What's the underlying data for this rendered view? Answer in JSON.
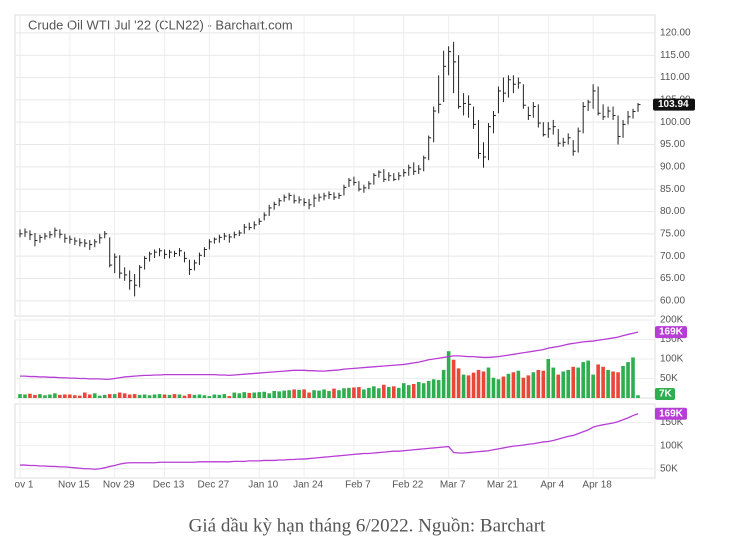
{
  "chart_data": [
    {
      "type": "ohlc",
      "title": "Crude Oil WTI Jul '22 (CLN22) - Barchart.com",
      "color": "#222222",
      "categories": [
        "ov 1",
        null,
        null,
        null,
        null,
        null,
        null,
        null,
        null,
        null,
        "Nov 15",
        null,
        null,
        null,
        null,
        null,
        null,
        null,
        null,
        "Nov 29",
        null,
        null,
        null,
        null,
        null,
        null,
        null,
        null,
        null,
        "Dec 13",
        null,
        null,
        null,
        null,
        null,
        null,
        null,
        null,
        "Dec 27",
        null,
        null,
        null,
        null,
        null,
        null,
        null,
        null,
        null,
        "Jan 10",
        null,
        null,
        null,
        null,
        null,
        null,
        null,
        null,
        "Jan 24",
        null,
        null,
        null,
        null,
        null,
        null,
        null,
        null,
        null,
        "Feb 7",
        null,
        null,
        null,
        null,
        null,
        null,
        null,
        null,
        null,
        "Feb 22",
        null,
        null,
        null,
        null,
        null,
        null,
        null,
        null,
        "Mar 7",
        null,
        null,
        null,
        null,
        null,
        null,
        null,
        null,
        null,
        "Mar 21",
        null,
        null,
        null,
        null,
        null,
        null,
        null,
        null,
        null,
        "Apr 4",
        null,
        null,
        null,
        null,
        null,
        null,
        null,
        null,
        "Apr 18",
        null,
        null,
        null,
        null,
        null,
        null,
        null,
        null,
        null
      ],
      "high": [
        76.0,
        76.2,
        75.8,
        75.2,
        74.8,
        75.2,
        75.6,
        76.4,
        76.0,
        75.0,
        74.6,
        74.2,
        74.0,
        73.8,
        73.6,
        73.8,
        75.0,
        75.6,
        74.2,
        70.6,
        70.2,
        67.5,
        66.8,
        66.0,
        68.0,
        70.0,
        71.0,
        71.5,
        71.8,
        71.5,
        71.4,
        71.2,
        71.8,
        71.0,
        69.2,
        69.2,
        70.8,
        72.0,
        73.8,
        74.2,
        74.8,
        75.2,
        75.0,
        75.5,
        75.8,
        77.2,
        77.5,
        77.8,
        78.5,
        79.8,
        81.5,
        82.2,
        83.0,
        83.8,
        84.2,
        83.8,
        83.4,
        83.0,
        82.8,
        83.8,
        84.0,
        84.2,
        84.5,
        84.3,
        84.2,
        86.0,
        87.5,
        87.8,
        86.8,
        86.0,
        86.8,
        88.6,
        89.2,
        89.5,
        88.8,
        88.6,
        88.8,
        89.5,
        90.5,
        91.0,
        90.4,
        92.5,
        97.0,
        103.5,
        110.5,
        116.0,
        117.0,
        118.0,
        115.0,
        106.5,
        106.0,
        103.5,
        100.5,
        95.5,
        99.8,
        102.5,
        108.0,
        110.0,
        110.5,
        110.5,
        110.0,
        108.5,
        103.5,
        104.5,
        104.0,
        100.0,
        100.0,
        100.5,
        98.5,
        96.5,
        97.5,
        96.0,
        98.8,
        104.5,
        105.0,
        108.5,
        108.0,
        104.0,
        103.5,
        103.5,
        101.5,
        100.5,
        102.5,
        103.0,
        104.3
      ],
      "low": [
        74.2,
        74.3,
        73.6,
        72.2,
        73.0,
        73.7,
        74.0,
        74.2,
        74.0,
        73.0,
        72.8,
        72.5,
        72.2,
        72.0,
        71.4,
        72.0,
        72.8,
        74.0,
        67.5,
        66.2,
        65.0,
        64.5,
        62.5,
        61.0,
        63.0,
        67.0,
        68.8,
        69.6,
        70.0,
        69.4,
        69.5,
        69.8,
        70.0,
        68.6,
        65.8,
        66.8,
        68.0,
        69.8,
        71.5,
        72.8,
        73.0,
        73.6,
        73.0,
        74.0,
        74.5,
        75.0,
        75.8,
        76.0,
        77.0,
        78.0,
        79.0,
        80.4,
        81.2,
        82.2,
        82.5,
        81.8,
        81.8,
        81.2,
        80.5,
        81.0,
        82.2,
        82.5,
        82.8,
        82.6,
        82.8,
        83.6,
        85.5,
        85.8,
        84.5,
        84.2,
        85.0,
        86.0,
        87.6,
        86.6,
        86.8,
        86.8,
        87.0,
        87.8,
        88.0,
        88.2,
        88.4,
        89.0,
        91.5,
        95.5,
        102.0,
        104.5,
        110.5,
        106.5,
        103.0,
        101.5,
        101.0,
        98.5,
        91.8,
        89.8,
        91.5,
        97.5,
        102.0,
        104.5,
        105.5,
        106.5,
        107.5,
        103.0,
        100.5,
        101.0,
        98.8,
        96.8,
        96.5,
        97.2,
        94.5,
        94.5,
        95.0,
        92.5,
        93.2,
        97.5,
        102.5,
        103.0,
        101.5,
        100.5,
        101.0,
        100.5,
        95.0,
        96.5,
        99.5,
        100.8,
        102.3
      ],
      "close": [
        75.0,
        75.4,
        74.8,
        73.5,
        74.2,
        74.5,
        74.8,
        75.8,
        74.9,
        74.0,
        73.8,
        73.4,
        73.0,
        72.9,
        72.6,
        73.2,
        74.1,
        75.0,
        68.0,
        69.8,
        66.2,
        65.8,
        64.5,
        63.5,
        67.5,
        69.5,
        70.5,
        70.9,
        71.2,
        70.4,
        70.9,
        70.6,
        71.2,
        69.5,
        67.0,
        68.5,
        70.2,
        71.5,
        73.2,
        73.8,
        74.2,
        74.5,
        74.3,
        74.8,
        75.2,
        76.5,
        76.4,
        77.0,
        77.8,
        79.2,
        80.8,
        81.6,
        82.4,
        83.2,
        83.6,
        82.4,
        82.6,
        82.0,
        81.5,
        83.0,
        83.2,
        83.5,
        83.8,
        83.2,
        83.6,
        85.4,
        87.0,
        86.5,
        85.0,
        85.3,
        86.2,
        88.1,
        88.8,
        87.2,
        88.0,
        87.2,
        88.0,
        88.7,
        89.8,
        89.0,
        89.5,
        92.0,
        96.5,
        102.5,
        104.0,
        112.5,
        115.8,
        113.5,
        103.5,
        104.2,
        104.0,
        99.5,
        93.0,
        92.2,
        99.0,
        101.5,
        107.0,
        106.5,
        109.5,
        108.5,
        108.8,
        103.8,
        101.5,
        103.5,
        99.8,
        97.2,
        98.5,
        99.0,
        95.3,
        95.5,
        96.5,
        93.5,
        98.0,
        103.5,
        104.5,
        107.0,
        102.0,
        101.2,
        102.5,
        101.5,
        96.8,
        99.5,
        101.2,
        102.4,
        103.94
      ],
      "ylim": [
        56.6,
        124
      ],
      "yticks": [
        {
          "value": 60,
          "label": "60.00"
        },
        {
          "value": 65,
          "label": "65.00"
        },
        {
          "value": 70,
          "label": "70.00"
        },
        {
          "value": 75,
          "label": "75.00"
        },
        {
          "value": 80,
          "label": "80.00"
        },
        {
          "value": 85,
          "label": "85.00"
        },
        {
          "value": 90,
          "label": "90.00"
        },
        {
          "value": 95,
          "label": "95.00"
        },
        {
          "value": 100,
          "label": "100.00"
        },
        {
          "value": 105,
          "label": "105.00"
        },
        {
          "value": 110,
          "label": "110.00"
        },
        {
          "value": 115,
          "label": "115.00"
        },
        {
          "value": 120,
          "label": "120.00"
        }
      ],
      "grid": true
    },
    {
      "type": "volume",
      "up_color": "#2eae4e",
      "down_color": "#e8473a",
      "line_color": "#b83dd6",
      "values": [
        10,
        9,
        11,
        8,
        10,
        7,
        9,
        12,
        8,
        9,
        9,
        7,
        6,
        14,
        9,
        12,
        6,
        8,
        10,
        10,
        14,
        12,
        9,
        10,
        8,
        9,
        7,
        9,
        10,
        9,
        8,
        10,
        9,
        6,
        10,
        8,
        9,
        7,
        5,
        9,
        8,
        10,
        5,
        14,
        12,
        15,
        13,
        14,
        15,
        16,
        12,
        18,
        17,
        19,
        20,
        22,
        21,
        22,
        14,
        20,
        19,
        22,
        18,
        24,
        20,
        25,
        26,
        27,
        28,
        22,
        26,
        30,
        25,
        34,
        28,
        30,
        26,
        38,
        33,
        36,
        41,
        38,
        44,
        48,
        46,
        72,
        120,
        98,
        76,
        60,
        58,
        65,
        72,
        68,
        78,
        52,
        48,
        55,
        62,
        66,
        70,
        52,
        58,
        66,
        72,
        70,
        100,
        78,
        60,
        68,
        72,
        80,
        78,
        92,
        96,
        60,
        86,
        80,
        72,
        68,
        66,
        82,
        92,
        104,
        7
      ],
      "line": [
        56,
        56,
        55,
        55,
        54,
        54,
        53,
        53,
        52,
        52,
        51,
        51,
        50,
        50,
        49,
        49,
        49,
        48,
        48,
        50,
        52,
        54,
        55,
        56,
        57,
        58,
        58,
        59,
        59,
        60,
        60,
        60,
        60,
        60,
        60,
        60,
        60,
        60,
        60,
        60,
        59,
        59,
        58,
        59,
        60,
        61,
        62,
        63,
        64,
        65,
        66,
        67,
        68,
        69,
        70,
        71,
        71,
        71,
        70,
        70,
        69,
        69,
        70,
        71,
        72,
        74,
        75,
        76,
        77,
        78,
        79,
        80,
        81,
        82,
        83,
        84,
        85,
        86,
        88,
        90,
        92,
        95,
        98,
        100,
        102,
        104,
        106,
        108,
        108,
        107,
        106,
        106,
        105,
        104,
        104,
        105,
        106,
        108,
        110,
        112,
        114,
        116,
        118,
        120,
        122,
        124,
        128,
        130,
        132,
        135,
        138,
        140,
        142,
        144,
        145,
        146,
        148,
        150,
        152,
        154,
        156,
        160,
        163,
        166,
        169
      ],
      "ylim": [
        0,
        200
      ],
      "yticks": [
        {
          "value": 50,
          "label": "50K"
        },
        {
          "value": 100,
          "label": "100K"
        },
        {
          "value": 150,
          "label": "150K"
        },
        {
          "value": 200,
          "label": "200K"
        }
      ],
      "badges": [
        {
          "value": 169,
          "label": "169K",
          "color": "#b83dd6"
        },
        {
          "value": 7,
          "label": "7K",
          "color": "#2eae4e"
        }
      ]
    },
    {
      "type": "line",
      "color": "#b83dd6",
      "values": [
        58,
        58,
        57,
        57,
        56,
        56,
        55,
        55,
        54,
        54,
        53,
        52,
        51,
        50,
        50,
        49,
        50,
        52,
        55,
        57,
        60,
        62,
        63,
        63,
        63,
        63,
        63,
        63,
        64,
        64,
        64,
        64,
        64,
        64,
        64,
        64,
        65,
        65,
        65,
        65,
        65,
        65,
        65,
        66,
        66,
        66,
        67,
        67,
        67,
        68,
        68,
        68,
        69,
        69,
        70,
        70,
        71,
        71,
        72,
        73,
        74,
        75,
        76,
        77,
        78,
        79,
        80,
        81,
        82,
        83,
        83,
        84,
        85,
        86,
        87,
        88,
        88,
        89,
        90,
        91,
        92,
        93,
        94,
        95,
        96,
        97,
        98,
        85,
        84,
        84,
        85,
        86,
        87,
        88,
        89,
        91,
        93,
        95,
        97,
        99,
        100,
        101,
        103,
        104,
        106,
        108,
        109,
        111,
        114,
        117,
        120,
        122,
        126,
        130,
        134,
        140,
        143,
        145,
        147,
        149,
        152,
        156,
        160,
        165,
        169
      ],
      "ylim": [
        30,
        190
      ],
      "yticks": [
        {
          "value": 50,
          "label": "50K"
        },
        {
          "value": 100,
          "label": "100K"
        },
        {
          "value": 150,
          "label": "150K"
        }
      ],
      "badges": [
        {
          "value": 169,
          "label": "169K",
          "color": "#b83dd6"
        }
      ]
    }
  ],
  "caption": "Giá dầu kỳ hạn tháng 6/2022. Nguồn: Barchart"
}
